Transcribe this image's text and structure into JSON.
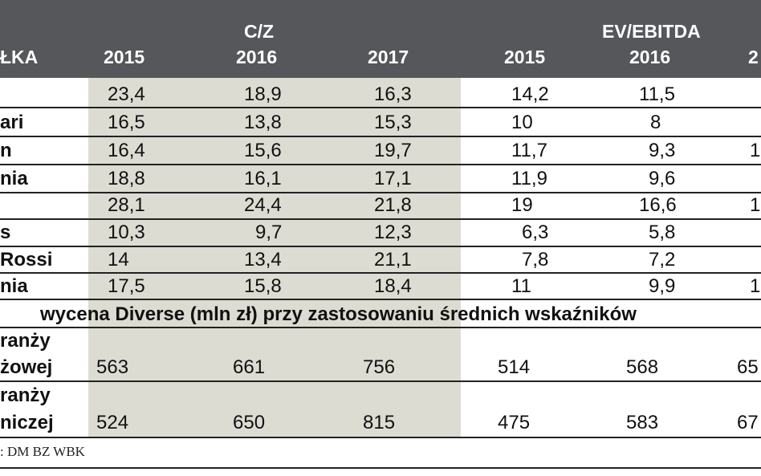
{
  "header": {
    "col0": "ŁKA",
    "pe_title": "C/Z",
    "ev_title": "EV/EBITDA",
    "pe_years": [
      "2015",
      "2016",
      "2017"
    ],
    "ev_years": [
      "2015",
      "2016",
      "2"
    ]
  },
  "rows": [
    {
      "label": "",
      "vals": [
        "23,4",
        "18,9",
        "16,3",
        "14,2",
        "11,5",
        ""
      ]
    },
    {
      "label": "ari",
      "vals": [
        "16,5",
        "13,8",
        "15,3",
        "10",
        "8",
        ""
      ]
    },
    {
      "label": "n",
      "vals": [
        "16,4",
        "15,6",
        "19,7",
        "11,7",
        "9,3",
        "1"
      ]
    },
    {
      "label": "nia",
      "vals": [
        "18,8",
        "16,1",
        "17,1",
        "11,9",
        "9,6",
        ""
      ]
    },
    {
      "label": "",
      "vals": [
        "28,1",
        "24,4",
        "21,8",
        "19",
        "16,6",
        "1"
      ]
    },
    {
      "label": "s",
      "vals": [
        "10,3",
        "9,7",
        "12,3",
        "6,3",
        "5,8",
        ""
      ]
    },
    {
      "label": "Rossi",
      "vals": [
        "14",
        "13,4",
        "21,1",
        "7,8",
        "7,2",
        ""
      ]
    },
    {
      "label": "nia",
      "vals": [
        "17,5",
        "15,8",
        "18,4",
        "11",
        "9,9",
        "1"
      ]
    }
  ],
  "banner": "wycena Diverse (mln zł) przy zastosowaniu średnich wskaźników",
  "valuation_rows": [
    {
      "label_line1": "ranży",
      "label_line2": "żowej",
      "vals": [
        "563",
        "661",
        "756",
        "514",
        "568",
        "65"
      ]
    },
    {
      "label_line1": "ranży",
      "label_line2": "niczej",
      "vals": [
        "524",
        "650",
        "815",
        "475",
        "583",
        "67"
      ]
    }
  ],
  "source": ": DM BZ WBK"
}
